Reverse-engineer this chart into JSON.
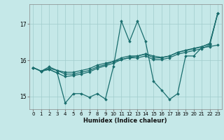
{
  "background_color": "#c5e8e8",
  "grid_color": "#a0cccc",
  "line_color": "#1a6e6e",
  "xlabel": "Humidex (Indice chaleur)",
  "xlim": [
    -0.5,
    23.5
  ],
  "ylim": [
    14.65,
    17.55
  ],
  "yticks": [
    15,
    16,
    17
  ],
  "xticks": [
    0,
    1,
    2,
    3,
    4,
    5,
    6,
    7,
    8,
    9,
    10,
    11,
    12,
    13,
    14,
    15,
    16,
    17,
    18,
    19,
    20,
    21,
    22,
    23
  ],
  "series": [
    [
      15.8,
      15.7,
      15.75,
      15.65,
      15.55,
      15.58,
      15.62,
      15.68,
      15.78,
      15.85,
      15.92,
      16.02,
      16.08,
      16.12,
      16.18,
      16.12,
      16.08,
      16.12,
      16.22,
      16.28,
      16.33,
      16.38,
      16.45,
      17.3
    ],
    [
      15.8,
      15.7,
      15.75,
      15.65,
      14.82,
      15.08,
      15.08,
      14.98,
      15.08,
      14.93,
      15.82,
      17.08,
      16.52,
      17.08,
      16.52,
      15.42,
      15.18,
      14.92,
      15.08,
      16.12,
      16.12,
      16.35,
      16.38,
      16.42
    ],
    [
      15.8,
      15.7,
      15.78,
      15.72,
      15.62,
      15.62,
      15.67,
      15.72,
      15.82,
      15.88,
      15.97,
      16.02,
      16.07,
      16.07,
      16.12,
      16.02,
      16.02,
      16.07,
      16.17,
      16.22,
      16.27,
      16.32,
      16.42,
      17.3
    ],
    [
      15.8,
      15.7,
      15.82,
      15.72,
      15.67,
      15.67,
      15.72,
      15.77,
      15.87,
      15.92,
      15.97,
      16.07,
      16.12,
      16.12,
      16.17,
      16.07,
      16.07,
      16.12,
      16.22,
      16.27,
      16.32,
      16.37,
      16.47,
      17.3
    ]
  ]
}
